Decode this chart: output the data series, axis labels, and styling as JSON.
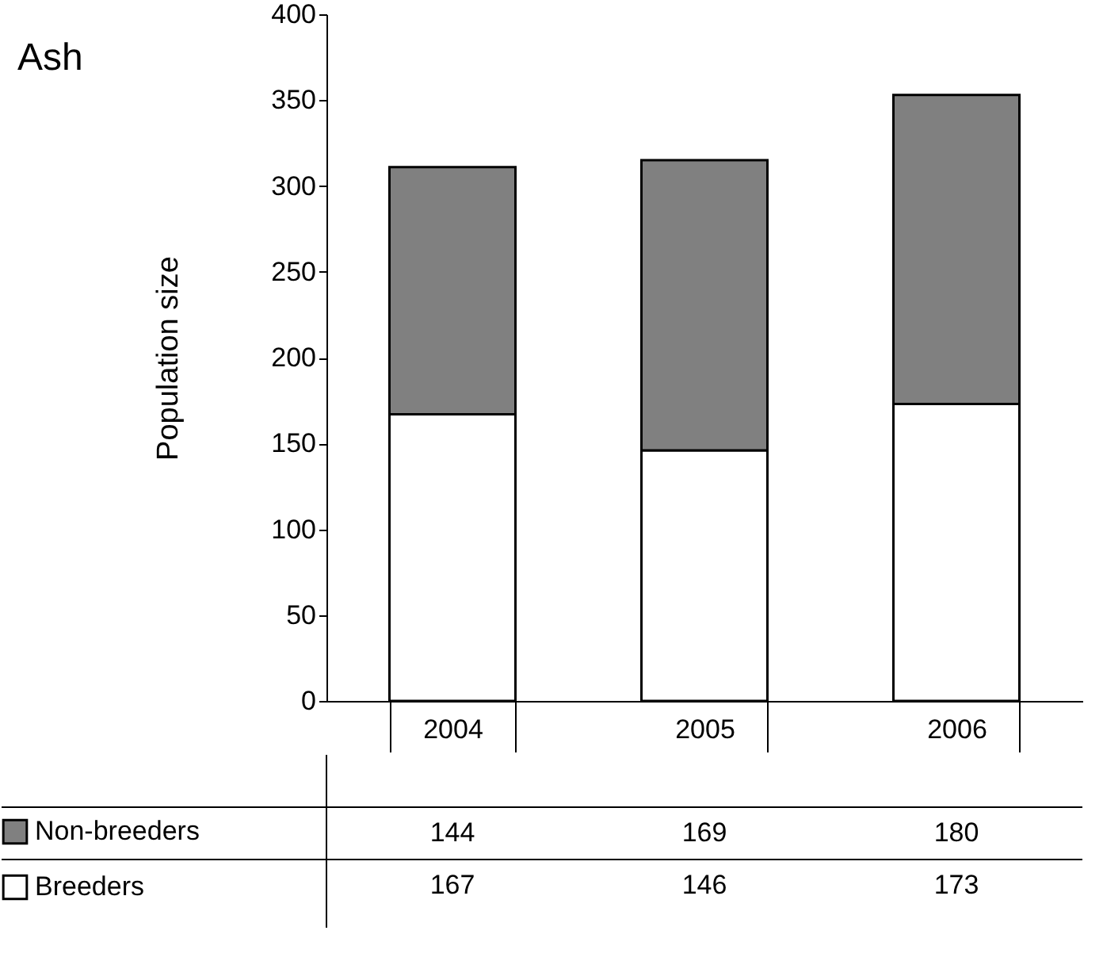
{
  "chart_data": {
    "type": "bar",
    "title": "Ash",
    "ylabel": "Population size",
    "categories": [
      "2004",
      "2005",
      "2006"
    ],
    "stacked": true,
    "series": [
      {
        "name": "Breeders",
        "color": "#ffffff",
        "values": [
          167,
          146,
          173
        ]
      },
      {
        "name": "Non-breeders",
        "color": "#808080",
        "values": [
          144,
          169,
          180
        ]
      }
    ],
    "ylim": [
      0,
      400
    ],
    "yticks": [
      0,
      50,
      100,
      150,
      200,
      250,
      300,
      350,
      400
    ],
    "grid": false,
    "legend": "bottom left",
    "data_labels": true
  }
}
